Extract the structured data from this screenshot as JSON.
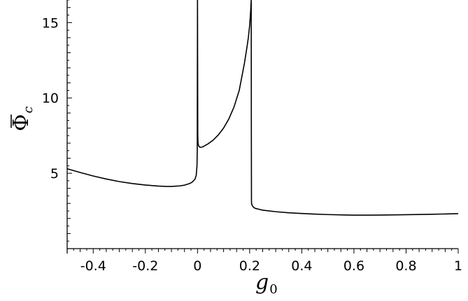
{
  "chart_data": {
    "type": "line",
    "title": "",
    "xlabel": "g",
    "xlabel_subscript": "0",
    "ylabel": "Φ",
    "ylabel_subscript": "c",
    "ylabel_overbar": true,
    "xlim": [
      -0.5,
      1.0
    ],
    "ylim": [
      0,
      16.5
    ],
    "grid": false,
    "legend": "none",
    "x_ticks": [
      {
        "value": -0.4,
        "label": "-0.4"
      },
      {
        "value": -0.2,
        "label": "-0.2"
      },
      {
        "value": 0,
        "label": "0"
      },
      {
        "value": 0.2,
        "label": "0.2"
      },
      {
        "value": 0.4,
        "label": "0.4"
      },
      {
        "value": 0.6,
        "label": "0.6"
      },
      {
        "value": 0.8,
        "label": "0.8"
      },
      {
        "value": 1.0,
        "label": "1"
      }
    ],
    "y_ticks": [
      {
        "value": 5,
        "label": "5"
      },
      {
        "value": 10,
        "label": "10"
      },
      {
        "value": 15,
        "label": "15"
      }
    ],
    "series": [
      {
        "color": "#000000",
        "x": [
          -0.5,
          -0.45,
          -0.4,
          -0.35,
          -0.3,
          -0.25,
          -0.2,
          -0.15,
          -0.12,
          -0.1,
          -0.07,
          -0.05,
          -0.03,
          -0.02,
          -0.01,
          -0.005,
          -0.002,
          -0.001,
          0.0,
          0.001,
          0.002,
          0.004,
          0.006,
          0.01,
          0.02,
          0.04,
          0.06,
          0.08,
          0.1,
          0.12,
          0.14,
          0.16,
          0.18,
          0.19,
          0.195,
          0.2,
          0.202,
          0.204,
          0.206,
          0.2065,
          0.207,
          0.208,
          0.21,
          0.215,
          0.22,
          0.25,
          0.3,
          0.35,
          0.4,
          0.45,
          0.5,
          0.55,
          0.6,
          0.65,
          0.7,
          0.8,
          0.9,
          1.0
        ],
        "y": [
          5.3,
          5.05,
          4.82,
          4.62,
          4.45,
          4.32,
          4.22,
          4.15,
          4.13,
          4.13,
          4.16,
          4.21,
          4.32,
          4.42,
          4.6,
          4.85,
          5.5,
          6.5,
          16.5,
          7.6,
          7.0,
          6.85,
          6.78,
          6.72,
          6.75,
          6.95,
          7.2,
          7.55,
          8.0,
          8.6,
          9.4,
          10.5,
          12.3,
          13.4,
          14.0,
          14.8,
          15.3,
          15.8,
          16.5,
          8.0,
          3.1,
          2.95,
          2.85,
          2.75,
          2.68,
          2.55,
          2.45,
          2.38,
          2.33,
          2.29,
          2.26,
          2.24,
          2.22,
          2.22,
          2.23,
          2.25,
          2.28,
          2.32
        ]
      }
    ]
  }
}
